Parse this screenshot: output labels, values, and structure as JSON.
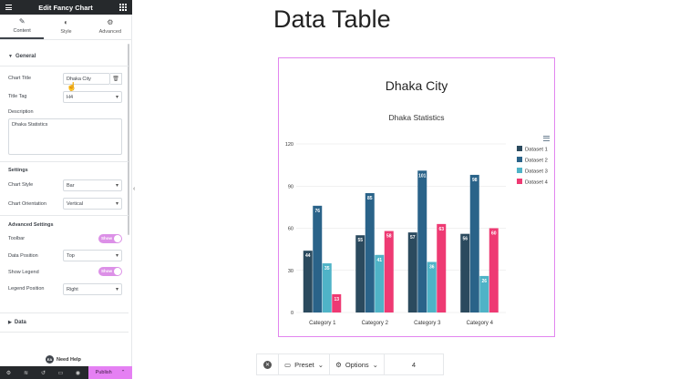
{
  "editor": {
    "title": "Edit Fancy Chart",
    "tabs": [
      {
        "label": "Content",
        "icon": "pencil-icon"
      },
      {
        "label": "Style",
        "icon": "contrast-icon"
      },
      {
        "label": "Advanced",
        "icon": "gear-icon"
      }
    ],
    "general": {
      "heading": "General",
      "chart_title_label": "Chart Title",
      "chart_title_value": "Dhaka City",
      "title_tag_label": "Title Tag",
      "title_tag_value": "H4",
      "description_label": "Description",
      "description_value": "Dhaka Statistics"
    },
    "settings": {
      "heading": "Settings",
      "chart_style_label": "Chart Style",
      "chart_style_value": "Bar",
      "chart_orientation_label": "Chart Orientation",
      "chart_orientation_value": "Vertical"
    },
    "advanced": {
      "heading": "Advanced Settings",
      "toolbar_label": "Toolbar",
      "toolbar_value": "Show",
      "data_position_label": "Data Position",
      "data_position_value": "Top",
      "show_legend_label": "Show Legend",
      "show_legend_value": "Show",
      "legend_position_label": "Legend Position",
      "legend_position_value": "Right"
    },
    "data_section": "Data",
    "need_help": "Need Help",
    "publish": "Publish",
    "accent": "#e580f3"
  },
  "page": {
    "title": "Data Table",
    "chart_heading": "Dhaka City",
    "chart_description": "Dhaka Statistics"
  },
  "chart_data": {
    "type": "bar",
    "categories": [
      "Category 1",
      "Category 2",
      "Category 3",
      "Category 4"
    ],
    "series": [
      {
        "name": "Dataset 1",
        "color": "#2b4a5e",
        "values": [
          44,
          55,
          57,
          56
        ]
      },
      {
        "name": "Dataset 2",
        "color": "#2a6389",
        "values": [
          76,
          85,
          101,
          98
        ]
      },
      {
        "name": "Dataset 3",
        "color": "#4fb3c7",
        "values": [
          35,
          41,
          36,
          26
        ]
      },
      {
        "name": "Dataset 4",
        "color": "#ee3a73",
        "values": [
          13,
          58,
          63,
          60
        ]
      }
    ],
    "ylim": [
      0,
      120
    ],
    "yticks": [
      0,
      30,
      60,
      90,
      120
    ],
    "legend": "right",
    "grid": true
  },
  "canvas_toolbar": {
    "preset": "Preset",
    "options": "Options",
    "count": "4"
  }
}
